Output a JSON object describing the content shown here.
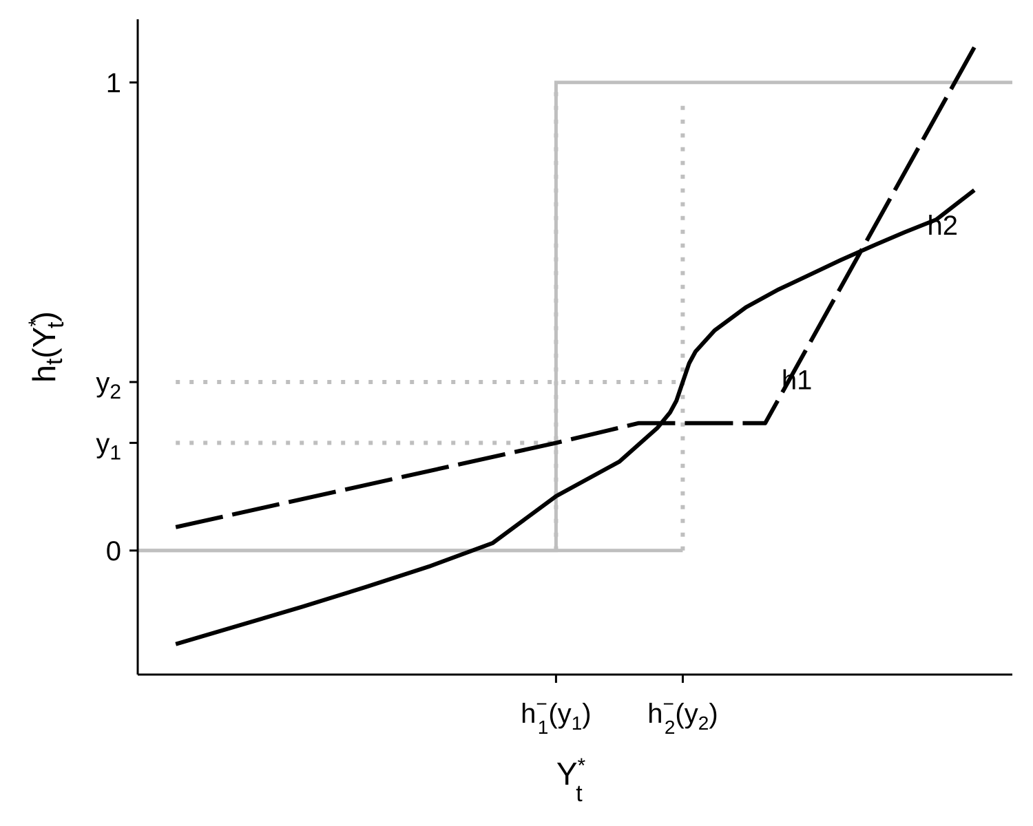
{
  "chart_data": {
    "type": "line",
    "title": "",
    "xlabel": {
      "base": "Y",
      "sub": "t",
      "sup": "*"
    },
    "ylabel": {
      "fn": "h",
      "fn_sub": "t",
      "arg_base": "Y",
      "arg_sub": "t",
      "arg_sup": "*"
    },
    "xlim": [
      -3.3,
      3.6
    ],
    "ylim": [
      -0.265,
      1.135
    ],
    "grid": false,
    "legend": "none",
    "y_ticks": [
      {
        "value": 0,
        "label": "0"
      },
      {
        "value": 0.23,
        "label": "y",
        "sub": "1"
      },
      {
        "value": 0.36,
        "label": "y",
        "sub": "2"
      },
      {
        "value": 1,
        "label": "1"
      }
    ],
    "x_ticks": [
      {
        "value": 0,
        "fn": "h",
        "fn_sub": "1",
        "fn_sup": "−",
        "arg": "y",
        "arg_sub": "1"
      },
      {
        "value": 1,
        "fn": "h",
        "fn_sub": "2",
        "fn_sup": "−",
        "arg": "y",
        "arg_sub": "2"
      }
    ],
    "series": [
      {
        "name": "h1",
        "style": "dashed",
        "color": "#000000",
        "x": [
          -3.0,
          0.0,
          0.65,
          1.65,
          3.3
        ],
        "y": [
          0.05,
          0.23,
          0.272,
          0.272,
          1.075
        ]
      },
      {
        "name": "h2",
        "style": "solid",
        "color": "#000000",
        "x": [
          -3.0,
          -2.5,
          -2.0,
          -1.5,
          -1.0,
          -0.5,
          0.0,
          0.5,
          0.8,
          0.9,
          0.95,
          1.0,
          1.05,
          1.1,
          1.25,
          1.5,
          1.75,
          2.0,
          2.25,
          2.5,
          2.75,
          3.0,
          3.3
        ],
        "y": [
          -0.2,
          -0.16,
          -0.12,
          -0.078,
          -0.034,
          0.016,
          0.116,
          0.19,
          0.262,
          0.295,
          0.32,
          0.36,
          0.4,
          0.425,
          0.47,
          0.52,
          0.557,
          0.589,
          0.621,
          0.651,
          0.68,
          0.707,
          0.77
        ]
      }
    ],
    "series_label_points": [
      {
        "series": 0,
        "x": 1.9,
        "y": 0.36
      },
      {
        "series": 1,
        "x": 3.05,
        "y": 0.69
      }
    ],
    "step_functions": [
      {
        "style": "solid",
        "color": "#bfbfbf",
        "x": [
          -3.3,
          0.0,
          0.0,
          3.6
        ],
        "y": [
          0,
          0,
          1,
          1
        ]
      },
      {
        "style": "solid",
        "color": "#bfbfbf",
        "x": [
          -3.3,
          1.0
        ],
        "y": [
          0,
          0
        ]
      }
    ],
    "guides": [
      {
        "style": "dotted",
        "color": "#bfbfbf",
        "x": [
          -3.0,
          1.0
        ],
        "y": [
          0.36,
          0.36
        ]
      },
      {
        "style": "dotted",
        "color": "#bfbfbf",
        "x": [
          -3.0,
          0.0
        ],
        "y": [
          0.23,
          0.23
        ]
      },
      {
        "style": "dotted",
        "color": "#bfbfbf",
        "x": [
          0.0,
          0.0
        ],
        "y": [
          0.0,
          1.0
        ]
      },
      {
        "style": "dotted",
        "color": "#bfbfbf",
        "x": [
          1.0,
          1.0
        ],
        "y": [
          0.0,
          0.96
        ]
      }
    ]
  }
}
